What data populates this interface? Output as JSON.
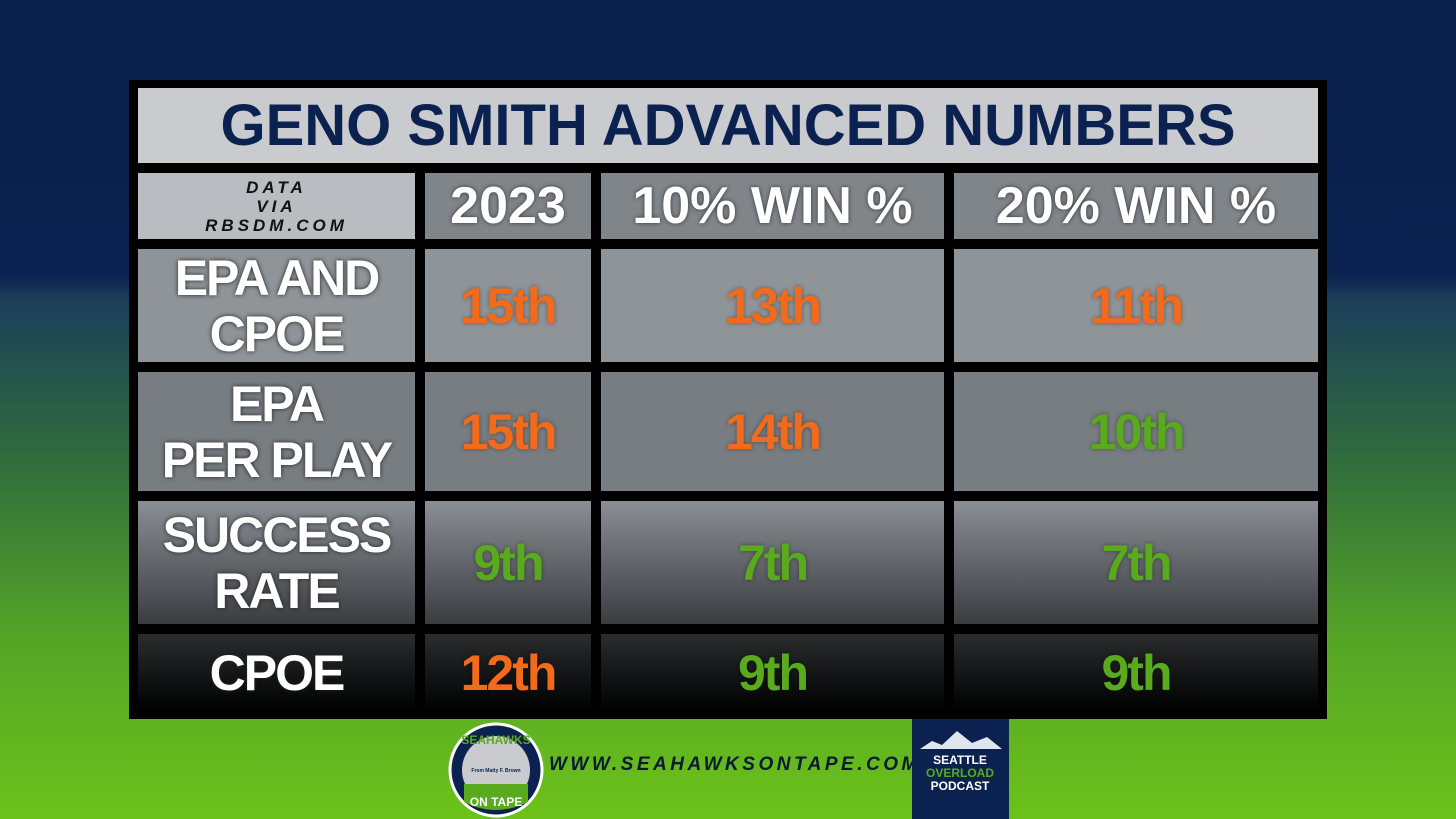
{
  "header": {
    "title": "GENO SMITH ADVANCED NUMBERS"
  },
  "table": {
    "source": [
      "DATA",
      "VIA",
      "RBSDM.COM"
    ],
    "columns": [
      "2023",
      "10% WIN %",
      "20% WIN %"
    ],
    "rows": [
      {
        "label": [
          "EPA AND",
          "CPOE"
        ],
        "values": [
          "15th",
          "13th",
          "11th"
        ],
        "colors": [
          "#f26b1d",
          "#f26b1d",
          "#f26b1d"
        ]
      },
      {
        "label": [
          "EPA",
          "PER PLAY"
        ],
        "values": [
          "15th",
          "14th",
          "10th"
        ],
        "colors": [
          "#f26b1d",
          "#f26b1d",
          "#5aaa1e"
        ]
      },
      {
        "label": [
          "SUCCESS",
          "RATE"
        ],
        "values": [
          "9th",
          "7th",
          "7th"
        ],
        "colors": [
          "#5aaa1e",
          "#5aaa1e",
          "#5aaa1e"
        ]
      },
      {
        "label": [
          "CPOE"
        ],
        "values": [
          "12th",
          "9th",
          "9th"
        ],
        "colors": [
          "#f26b1d",
          "#5aaa1e",
          "#5aaa1e"
        ]
      }
    ]
  },
  "footer": {
    "url": "WWW.SEAHAWKSONTAPE.COM",
    "logo_left": {
      "top": "SEAHAWKS",
      "middle": "From Matty F. Brown",
      "bottom": "ON TAPE"
    },
    "logo_right": [
      "SEATTLE",
      "OVERLOAD",
      "PODCAST"
    ]
  }
}
